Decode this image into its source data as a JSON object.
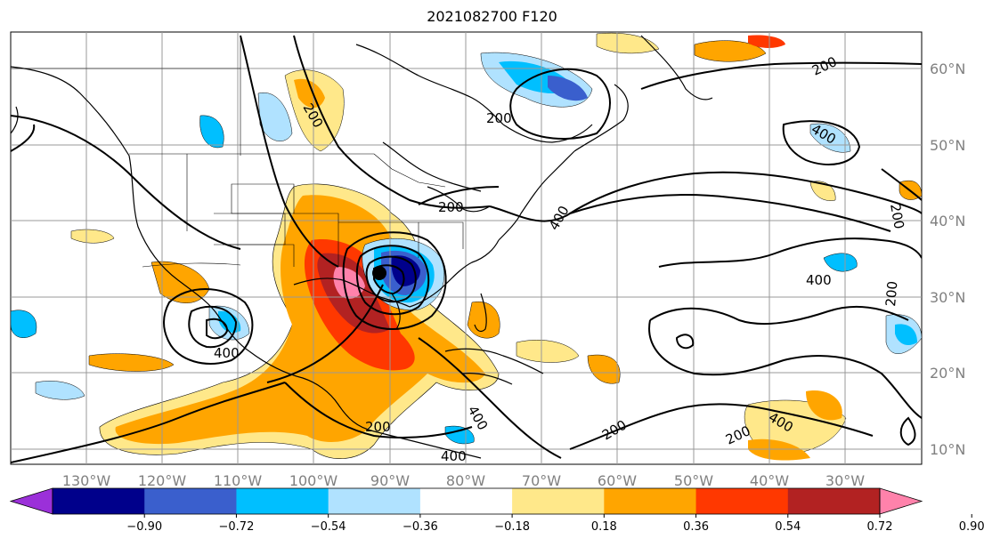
{
  "title": "2021082700 F120",
  "longitude_labels": [
    "130°W",
    "120°W",
    "110°W",
    "100°W",
    "90°W",
    "80°W",
    "70°W",
    "60°W",
    "50°W",
    "40°W",
    "30°W"
  ],
  "latitude_labels": [
    "60°N",
    "50°N",
    "40°N",
    "30°N",
    "20°N",
    "10°N"
  ],
  "contour_labels": [
    "200",
    "200",
    "200",
    "200",
    "400",
    "400",
    "400",
    "200",
    "200",
    "400",
    "400",
    "400",
    "200",
    "200",
    "400",
    "200"
  ],
  "colorbar": {
    "tick_labels": [
      "−0.90",
      "−0.72",
      "−0.54",
      "−0.36",
      "−0.18",
      "0.18",
      "0.36",
      "0.54",
      "0.72",
      "0.90"
    ],
    "colors": [
      "#9b30d9",
      "#00008b",
      "#3a5fcd",
      "#00bfff",
      "#b0e2ff",
      "#ffffff",
      "#ffe88a",
      "#ffa500",
      "#ff3800",
      "#b22222",
      "#ff82ab"
    ]
  },
  "colors": {
    "grid": "#999999",
    "coast": "#000000"
  }
}
